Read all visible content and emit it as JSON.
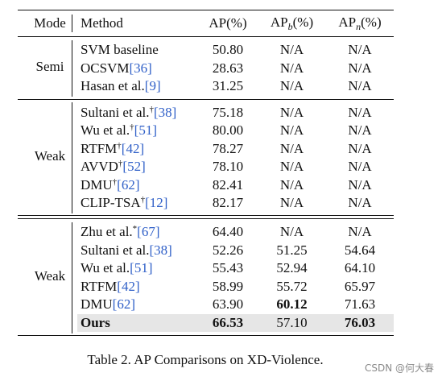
{
  "header": {
    "mode": "Mode",
    "method": "Method",
    "ap": "AP(%)",
    "apb_main": "AP",
    "apb_sub": "b",
    "apb_tail": "(%)",
    "apn_main": "AP",
    "apn_sub": "n",
    "apn_tail": "(%)"
  },
  "groups": [
    {
      "mode": "Semi",
      "rows": [
        {
          "method": "SVM baseline",
          "sup": "",
          "cite": "",
          "ap": "50.80",
          "apb": "N/A",
          "apn": "N/A"
        },
        {
          "method": "OCSVM",
          "sup": "",
          "cite": "[36]",
          "ap": "28.63",
          "apb": "N/A",
          "apn": "N/A"
        },
        {
          "method": "Hasan et al.",
          "sup": "",
          "cite": "[9]",
          "ap": "31.25",
          "apb": "N/A",
          "apn": "N/A"
        }
      ]
    },
    {
      "mode": "Weak",
      "rows": [
        {
          "method": "Sultani et al.",
          "sup": "†",
          "cite": "[38]",
          "ap": "75.18",
          "apb": "N/A",
          "apn": "N/A"
        },
        {
          "method": "Wu et al.",
          "sup": "†",
          "cite": "[51]",
          "ap": "80.00",
          "apb": "N/A",
          "apn": "N/A"
        },
        {
          "method": "RTFM",
          "sup": "†",
          "cite": "[42]",
          "ap": "78.27",
          "apb": "N/A",
          "apn": "N/A"
        },
        {
          "method": "AVVD",
          "sup": "†",
          "cite": "[52]",
          "ap": "78.10",
          "apb": "N/A",
          "apn": "N/A"
        },
        {
          "method": "DMU",
          "sup": "†",
          "cite": "[62]",
          "ap": "82.41",
          "apb": "N/A",
          "apn": "N/A"
        },
        {
          "method": "CLIP-TSA",
          "sup": "†",
          "cite": "[12]",
          "ap": "82.17",
          "apb": "N/A",
          "apn": "N/A"
        }
      ]
    },
    {
      "mode": "Weak",
      "rows": [
        {
          "method": "Zhu et al.",
          "sup": "*",
          "cite": "[67]",
          "ap": "64.40",
          "apb": "N/A",
          "apn": "N/A"
        },
        {
          "method": "Sultani et al.",
          "sup": "",
          "cite": "[38]",
          "ap": "52.26",
          "apb": "51.25",
          "apn": "54.64"
        },
        {
          "method": "Wu et al.",
          "sup": "",
          "cite": "[51]",
          "ap": "55.43",
          "apb": "52.94",
          "apn": "64.10"
        },
        {
          "method": "RTFM",
          "sup": "",
          "cite": "[42]",
          "ap": "58.99",
          "apb": "55.72",
          "apn": "65.97"
        },
        {
          "method": "DMU",
          "sup": "",
          "cite": "[62]",
          "ap": "63.90",
          "apb": "60.12",
          "apn": "71.63"
        },
        {
          "method": "Ours",
          "sup": "",
          "cite": "",
          "ap": "66.53",
          "apb": "57.10",
          "apn": "76.03"
        }
      ]
    }
  ],
  "caption": "Table 2. AP Comparisons on XD-Violence.",
  "watermark": "CSDN @何大春",
  "colors": {
    "citation": "#3060c8",
    "highlight_row": "#e6e6e6"
  }
}
